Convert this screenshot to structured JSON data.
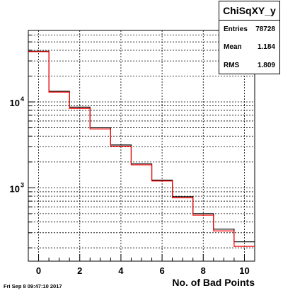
{
  "footer": {
    "timestamp": "Fri Sep  8 09:47:10 2017"
  },
  "stats": {
    "title": "ChiSqXY_y",
    "rows": [
      {
        "label": "Entries",
        "value": "78728"
      },
      {
        "label": "Mean",
        "value": "1.184"
      },
      {
        "label": "RMS",
        "value": "1.809"
      }
    ]
  },
  "chart_data": {
    "type": "bar",
    "histogram": "step",
    "xlabel": "No. of Bad Points",
    "ylabel": "",
    "xlim": [
      -0.5,
      10.5
    ],
    "ylim": [
      140,
      68000
    ],
    "yscale": "log",
    "grid": true,
    "bin_edges": [
      -0.5,
      0.5,
      1.5,
      2.5,
      3.5,
      4.5,
      5.5,
      6.5,
      7.5,
      8.5,
      9.5,
      10.5
    ],
    "x_ticks": [
      0,
      2,
      4,
      6,
      8,
      10
    ],
    "y_ticks": [
      {
        "value": 10000,
        "base": "10",
        "exp": "4"
      },
      {
        "value": 1000,
        "base": "10",
        "exp": "3"
      }
    ],
    "series": [
      {
        "values": [
          39000,
          13300,
          8700,
          5000,
          3150,
          1900,
          1230,
          790,
          500,
          330,
          235
        ],
        "color": "#000000"
      },
      {
        "values": [
          38500,
          13000,
          8400,
          4850,
          3050,
          1850,
          1200,
          765,
          480,
          315,
          208
        ],
        "color": "#ff0000"
      }
    ]
  }
}
